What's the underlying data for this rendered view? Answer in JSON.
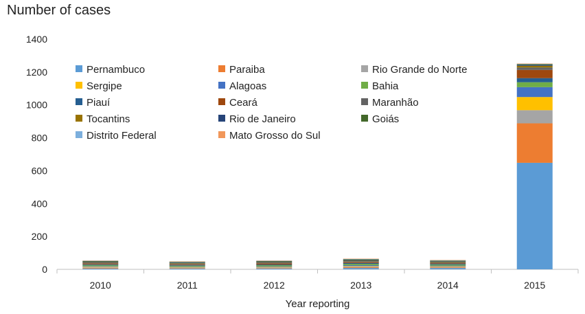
{
  "chart_data": {
    "type": "bar",
    "stacked": true,
    "title": "",
    "ylabel": "Number of cases",
    "xlabel": "Year reporting",
    "ylim": [
      0,
      1400
    ],
    "yticks": [
      0,
      200,
      400,
      600,
      800,
      1000,
      1200,
      1400
    ],
    "categories": [
      "2010",
      "2011",
      "2012",
      "2013",
      "2014",
      "2015"
    ],
    "legend_position": "top-left (inside plot)",
    "grid": false,
    "series": [
      {
        "name": "Pernambuco",
        "color": "#5B9BD5",
        "values": [
          5,
          5,
          5,
          8,
          8,
          648
        ]
      },
      {
        "name": "Paraiba",
        "color": "#ED7D31",
        "values": [
          4,
          3,
          3,
          5,
          4,
          240
        ]
      },
      {
        "name": "Rio Grande do Norte",
        "color": "#A5A5A5",
        "values": [
          4,
          3,
          4,
          4,
          4,
          80
        ]
      },
      {
        "name": "Sergipe",
        "color": "#FFC000",
        "values": [
          3,
          3,
          3,
          3,
          3,
          80
        ]
      },
      {
        "name": "Alagoas",
        "color": "#4472C4",
        "values": [
          4,
          3,
          4,
          5,
          4,
          60
        ]
      },
      {
        "name": "Bahia",
        "color": "#70AD47",
        "values": [
          6,
          5,
          6,
          8,
          6,
          30
        ]
      },
      {
        "name": "Piauí",
        "color": "#255E91",
        "values": [
          4,
          4,
          4,
          5,
          4,
          25
        ]
      },
      {
        "name": "Ceará",
        "color": "#9E480E",
        "values": [
          5,
          4,
          6,
          5,
          4,
          50
        ]
      },
      {
        "name": "Maranhão",
        "color": "#636363",
        "values": [
          5,
          5,
          5,
          6,
          6,
          15
        ]
      },
      {
        "name": "Tocantins",
        "color": "#997300",
        "values": [
          3,
          3,
          3,
          3,
          3,
          10
        ]
      },
      {
        "name": "Rio de Janeiro",
        "color": "#264478",
        "values": [
          3,
          3,
          3,
          4,
          3,
          5
        ]
      },
      {
        "name": "Goiás",
        "color": "#43682B",
        "values": [
          4,
          4,
          4,
          5,
          4,
          5
        ]
      },
      {
        "name": "Distrito Federal",
        "color": "#7CAFDD",
        "values": [
          2,
          2,
          2,
          2,
          2,
          2
        ]
      },
      {
        "name": "Mato Grosso do Sul",
        "color": "#F1975A",
        "values": [
          2,
          2,
          2,
          2,
          2,
          2
        ]
      }
    ]
  }
}
